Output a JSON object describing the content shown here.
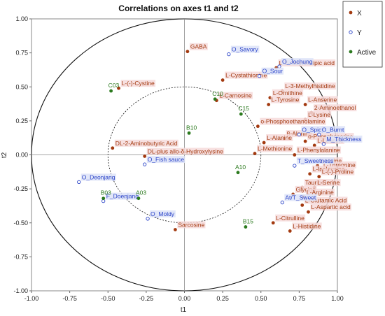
{
  "chart_data": {
    "type": "scatter",
    "title": "Correlations on axes t1 and t2",
    "xlabel": "t1",
    "ylabel": "t2",
    "xlim": [
      -1.0,
      1.0
    ],
    "ylim": [
      -1.0,
      1.0
    ],
    "x_ticks": [
      "-1.00",
      "-0.75",
      "-0.50",
      "-0.25",
      "0.00",
      "0.25",
      "0.50",
      "0.75",
      "1.00"
    ],
    "y_ticks": [
      "-1.00",
      "-0.75",
      "-0.50",
      "-0.25",
      "0.00",
      "0.25",
      "0.50",
      "0.75",
      "1.00"
    ],
    "circles": [
      1.0,
      0.5
    ],
    "legend_position": "top-right",
    "colors": {
      "X": "#a33a10",
      "Y": "#2a43c8",
      "Active": "#2b7a1e",
      "x_label_bg": "#f6dada",
      "y_label_bg": "#dde3f8"
    },
    "series": [
      {
        "name": "X",
        "marker": "filled-circle",
        "points": [
          {
            "label": "GABA",
            "x": 0.02,
            "y": 0.76
          },
          {
            "label": "L-Cystathionine",
            "x": 0.25,
            "y": 0.55
          },
          {
            "label": "L-(-)-Cystine",
            "x": -0.43,
            "y": 0.49
          },
          {
            "label": "L-Carnosine",
            "x": 0.21,
            "y": 0.4
          },
          {
            "label": "L-2-Aminoadipic acid",
            "x": 0.6,
            "y": 0.64
          },
          {
            "label": "L-3-Methylhistidine",
            "x": 0.64,
            "y": 0.47
          },
          {
            "label": "L-Ornithine",
            "x": 0.56,
            "y": 0.42
          },
          {
            "label": "L-Tyrosine",
            "x": 0.55,
            "y": 0.37
          },
          {
            "label": "L-Anserine",
            "x": 0.79,
            "y": 0.37
          },
          {
            "label": "2-Aminoethanol",
            "x": 0.83,
            "y": 0.31
          },
          {
            "label": "L-Lysine",
            "x": 0.79,
            "y": 0.26
          },
          {
            "label": "o-Phosphoethanolamine",
            "x": 0.48,
            "y": 0.21
          },
          {
            "label": "β-Alanine",
            "x": 0.65,
            "y": 0.12
          },
          {
            "label": "L-Alanine",
            "x": 0.52,
            "y": 0.09
          },
          {
            "label": "o-Phosphoserine",
            "x": 0.79,
            "y": 0.1
          },
          {
            "label": "L-Leucine",
            "x": 0.85,
            "y": 0.07
          },
          {
            "label": "L-Methionine",
            "x": 0.46,
            "y": 0.01
          },
          {
            "label": "L-Phenylalanine",
            "x": 0.72,
            "y": 0.0
          },
          {
            "label": "DL-2-Aminobutyric Acid",
            "x": -0.47,
            "y": 0.05
          },
          {
            "label": "DL-plus allo-δ-Hydroxylysine",
            "x": -0.26,
            "y": -0.01
          },
          {
            "label": "L-Valine",
            "x": 0.87,
            "y": -0.08
          },
          {
            "label": "L-Threonine",
            "x": 0.89,
            "y": -0.11
          },
          {
            "label": "L-Isoleucine",
            "x": 0.82,
            "y": -0.14
          },
          {
            "label": "L-(-)-Proline",
            "x": 0.88,
            "y": -0.16
          },
          {
            "label": "Taurine",
            "x": 0.77,
            "y": -0.24
          },
          {
            "label": "L-Serine",
            "x": 0.85,
            "y": -0.24
          },
          {
            "label": "Glycine",
            "x": 0.71,
            "y": -0.29
          },
          {
            "label": "L-Arginine",
            "x": 0.78,
            "y": -0.31
          },
          {
            "label": "L-Glutamic Acid",
            "x": 0.77,
            "y": -0.37
          },
          {
            "label": "L-Aspartic acid",
            "x": 0.81,
            "y": -0.42
          },
          {
            "label": "L-Citrulline",
            "x": 0.58,
            "y": -0.5
          },
          {
            "label": "L-Histidine",
            "x": 0.69,
            "y": -0.56
          },
          {
            "label": "Sarcosine",
            "x": -0.06,
            "y": -0.55
          }
        ]
      },
      {
        "name": "Y",
        "marker": "open-circle",
        "points": [
          {
            "label": "O_Savory",
            "x": 0.29,
            "y": 0.74
          },
          {
            "label": "O_Jochung",
            "x": 0.62,
            "y": 0.65
          },
          {
            "label": "O_Sour",
            "x": 0.49,
            "y": 0.58
          },
          {
            "label": "O_Spicy",
            "x": 0.75,
            "y": 0.15
          },
          {
            "label": "O_Burnt",
            "x": 0.88,
            "y": 0.15
          },
          {
            "label": "M_Thickness",
            "x": 0.91,
            "y": 0.08
          },
          {
            "label": "T_Sweetness",
            "x": 0.72,
            "y": -0.08
          },
          {
            "label": "O_Fish sauce",
            "x": -0.26,
            "y": -0.07
          },
          {
            "label": "O_Deonjang",
            "x": -0.69,
            "y": -0.2
          },
          {
            "label": "F_Doenjang",
            "x": -0.53,
            "y": -0.34
          },
          {
            "label": "O_Moldy",
            "x": -0.24,
            "y": -0.47
          },
          {
            "label": "At/T_Sweet",
            "x": 0.64,
            "y": -0.35
          }
        ]
      },
      {
        "name": "Active",
        "marker": "filled-circle",
        "points": [
          {
            "label": "C03",
            "x": -0.48,
            "y": 0.47
          },
          {
            "label": "C10",
            "x": 0.2,
            "y": 0.41
          },
          {
            "label": "C15",
            "x": 0.37,
            "y": 0.3
          },
          {
            "label": "B10",
            "x": 0.03,
            "y": 0.16
          },
          {
            "label": "A10",
            "x": 0.35,
            "y": -0.13
          },
          {
            "label": "B03",
            "x": -0.53,
            "y": -0.32
          },
          {
            "label": "A03",
            "x": -0.3,
            "y": -0.32
          },
          {
            "label": "B15",
            "x": 0.4,
            "y": -0.53
          }
        ]
      }
    ]
  }
}
